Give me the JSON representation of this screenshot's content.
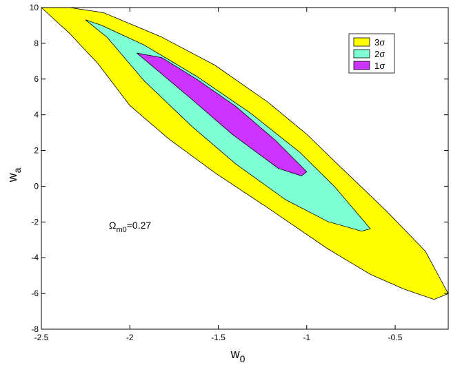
{
  "chart_data": {
    "type": "area",
    "subtype": "confidence-contours",
    "title": "",
    "xlabel": {
      "main": "w",
      "sub": "0"
    },
    "ylabel": {
      "main": "w",
      "sub": "a"
    },
    "xlim": [
      -2.5,
      -0.2
    ],
    "ylim": [
      -8,
      10
    ],
    "xticks": [
      -2.5,
      -2,
      -1.5,
      -1,
      -0.5
    ],
    "xtick_labels": [
      "-2.5",
      "-2",
      "-1.5",
      "-1",
      "-0.5"
    ],
    "yticks": [
      -8,
      -6,
      -4,
      -2,
      0,
      2,
      4,
      6,
      8,
      10
    ],
    "ytick_labels": [
      "-8",
      "-6",
      "-4",
      "-2",
      "0",
      "2",
      "4",
      "6",
      "8",
      "10"
    ],
    "grid": false,
    "legend_position": "top-right",
    "annotation": {
      "greek": "Ω",
      "sub": "m0",
      "text": "=0.27"
    },
    "series": [
      {
        "name": "3σ",
        "color": "#ffff00",
        "points": [
          [
            -2.34,
            10.0
          ],
          [
            -2.15,
            9.72
          ],
          [
            -1.82,
            8.35
          ],
          [
            -1.52,
            6.78
          ],
          [
            -1.22,
            4.71
          ],
          [
            -1.0,
            2.91
          ],
          [
            -0.82,
            1.18
          ],
          [
            -0.55,
            -1.38
          ],
          [
            -0.33,
            -3.63
          ],
          [
            -0.2,
            -6.01
          ],
          [
            -0.28,
            -6.33
          ],
          [
            -0.45,
            -5.76
          ],
          [
            -0.64,
            -4.93
          ],
          [
            -0.88,
            -3.51
          ],
          [
            -1.22,
            -1.21
          ],
          [
            -1.52,
            0.76
          ],
          [
            -1.78,
            2.65
          ],
          [
            -2.0,
            4.52
          ],
          [
            -2.18,
            6.86
          ],
          [
            -2.34,
            8.55
          ],
          [
            -2.5,
            10.0
          ]
        ]
      },
      {
        "name": "2σ",
        "color": "#7fffd4",
        "points": [
          [
            -2.25,
            9.31
          ],
          [
            -2.16,
            9.01
          ],
          [
            -1.92,
            7.91
          ],
          [
            -1.62,
            6.14
          ],
          [
            -1.32,
            4.11
          ],
          [
            -1.04,
            1.91
          ],
          [
            -0.84,
            -0.05
          ],
          [
            -0.64,
            -2.38
          ],
          [
            -0.69,
            -2.51
          ],
          [
            -0.88,
            -1.98
          ],
          [
            -1.12,
            -0.75
          ],
          [
            -1.4,
            1.24
          ],
          [
            -1.65,
            3.36
          ],
          [
            -1.92,
            5.91
          ],
          [
            -2.13,
            8.35
          ]
        ]
      },
      {
        "name": "1σ",
        "color": "#cc33ff",
        "points": [
          [
            -1.96,
            7.45
          ],
          [
            -1.82,
            7.2
          ],
          [
            -1.62,
            5.98
          ],
          [
            -1.4,
            4.46
          ],
          [
            -1.18,
            2.6
          ],
          [
            -1.0,
            0.81
          ],
          [
            -1.03,
            0.58
          ],
          [
            -1.16,
            1.0
          ],
          [
            -1.42,
            2.9
          ],
          [
            -1.66,
            4.95
          ],
          [
            -1.84,
            6.45
          ]
        ]
      }
    ]
  }
}
